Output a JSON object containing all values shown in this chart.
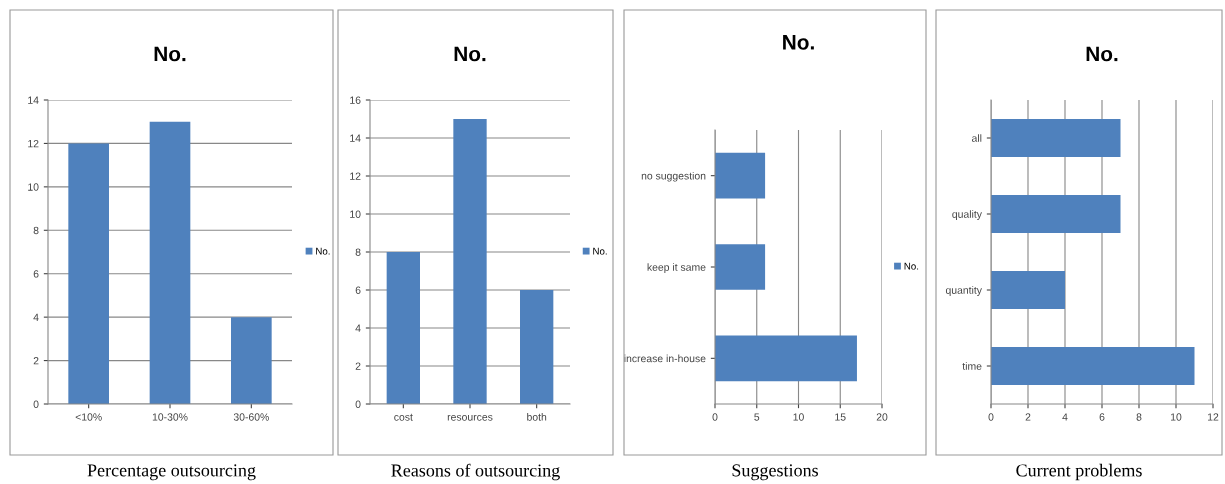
{
  "chart_data": [
    {
      "type": "bar",
      "title": "No.",
      "categories": [
        "<10%",
        "10-30%",
        "30-60%"
      ],
      "series": [
        {
          "name": "No.",
          "color": "#4f81bd",
          "values": [
            12,
            13,
            4
          ]
        }
      ],
      "ylim": [
        0,
        14
      ],
      "yticks": [
        0,
        2,
        4,
        6,
        8,
        10,
        12,
        14
      ],
      "grid": "y",
      "legend": "right",
      "annotations": [
        "Percentage outsourcing"
      ]
    },
    {
      "type": "bar",
      "title": "No.",
      "categories": [
        "cost",
        "resources",
        "both"
      ],
      "series": [
        {
          "name": "No.",
          "color": "#4f81bd",
          "values": [
            8,
            15,
            6
          ]
        }
      ],
      "ylim": [
        0,
        16
      ],
      "yticks": [
        0,
        2,
        4,
        6,
        8,
        10,
        12,
        14,
        16
      ],
      "grid": "y",
      "legend": "right",
      "annotations": [
        "Reasons of outsourcing"
      ]
    },
    {
      "type": "bar",
      "orientation": "horizontal",
      "title": "No.",
      "categories": [
        "no suggestion",
        "keep it same",
        "increase in-house"
      ],
      "series": [
        {
          "name": "No.",
          "color": "#4f81bd",
          "values": [
            6,
            6,
            17
          ]
        }
      ],
      "xlim": [
        0,
        20
      ],
      "xticks": [
        0,
        5,
        10,
        15,
        20
      ],
      "grid": "x",
      "legend": "right",
      "annotations": [
        "Suggestions"
      ]
    },
    {
      "type": "bar",
      "orientation": "horizontal",
      "title": "No.",
      "categories": [
        "all",
        "quality",
        "quantity",
        "time"
      ],
      "series": [
        {
          "color": "#4f81bd",
          "values": [
            7,
            7,
            4,
            11
          ]
        }
      ],
      "xlim": [
        0,
        12
      ],
      "xticks": [
        0,
        2,
        4,
        6,
        8,
        10,
        12
      ],
      "grid": "x",
      "annotations": [
        "Current problems"
      ]
    }
  ]
}
